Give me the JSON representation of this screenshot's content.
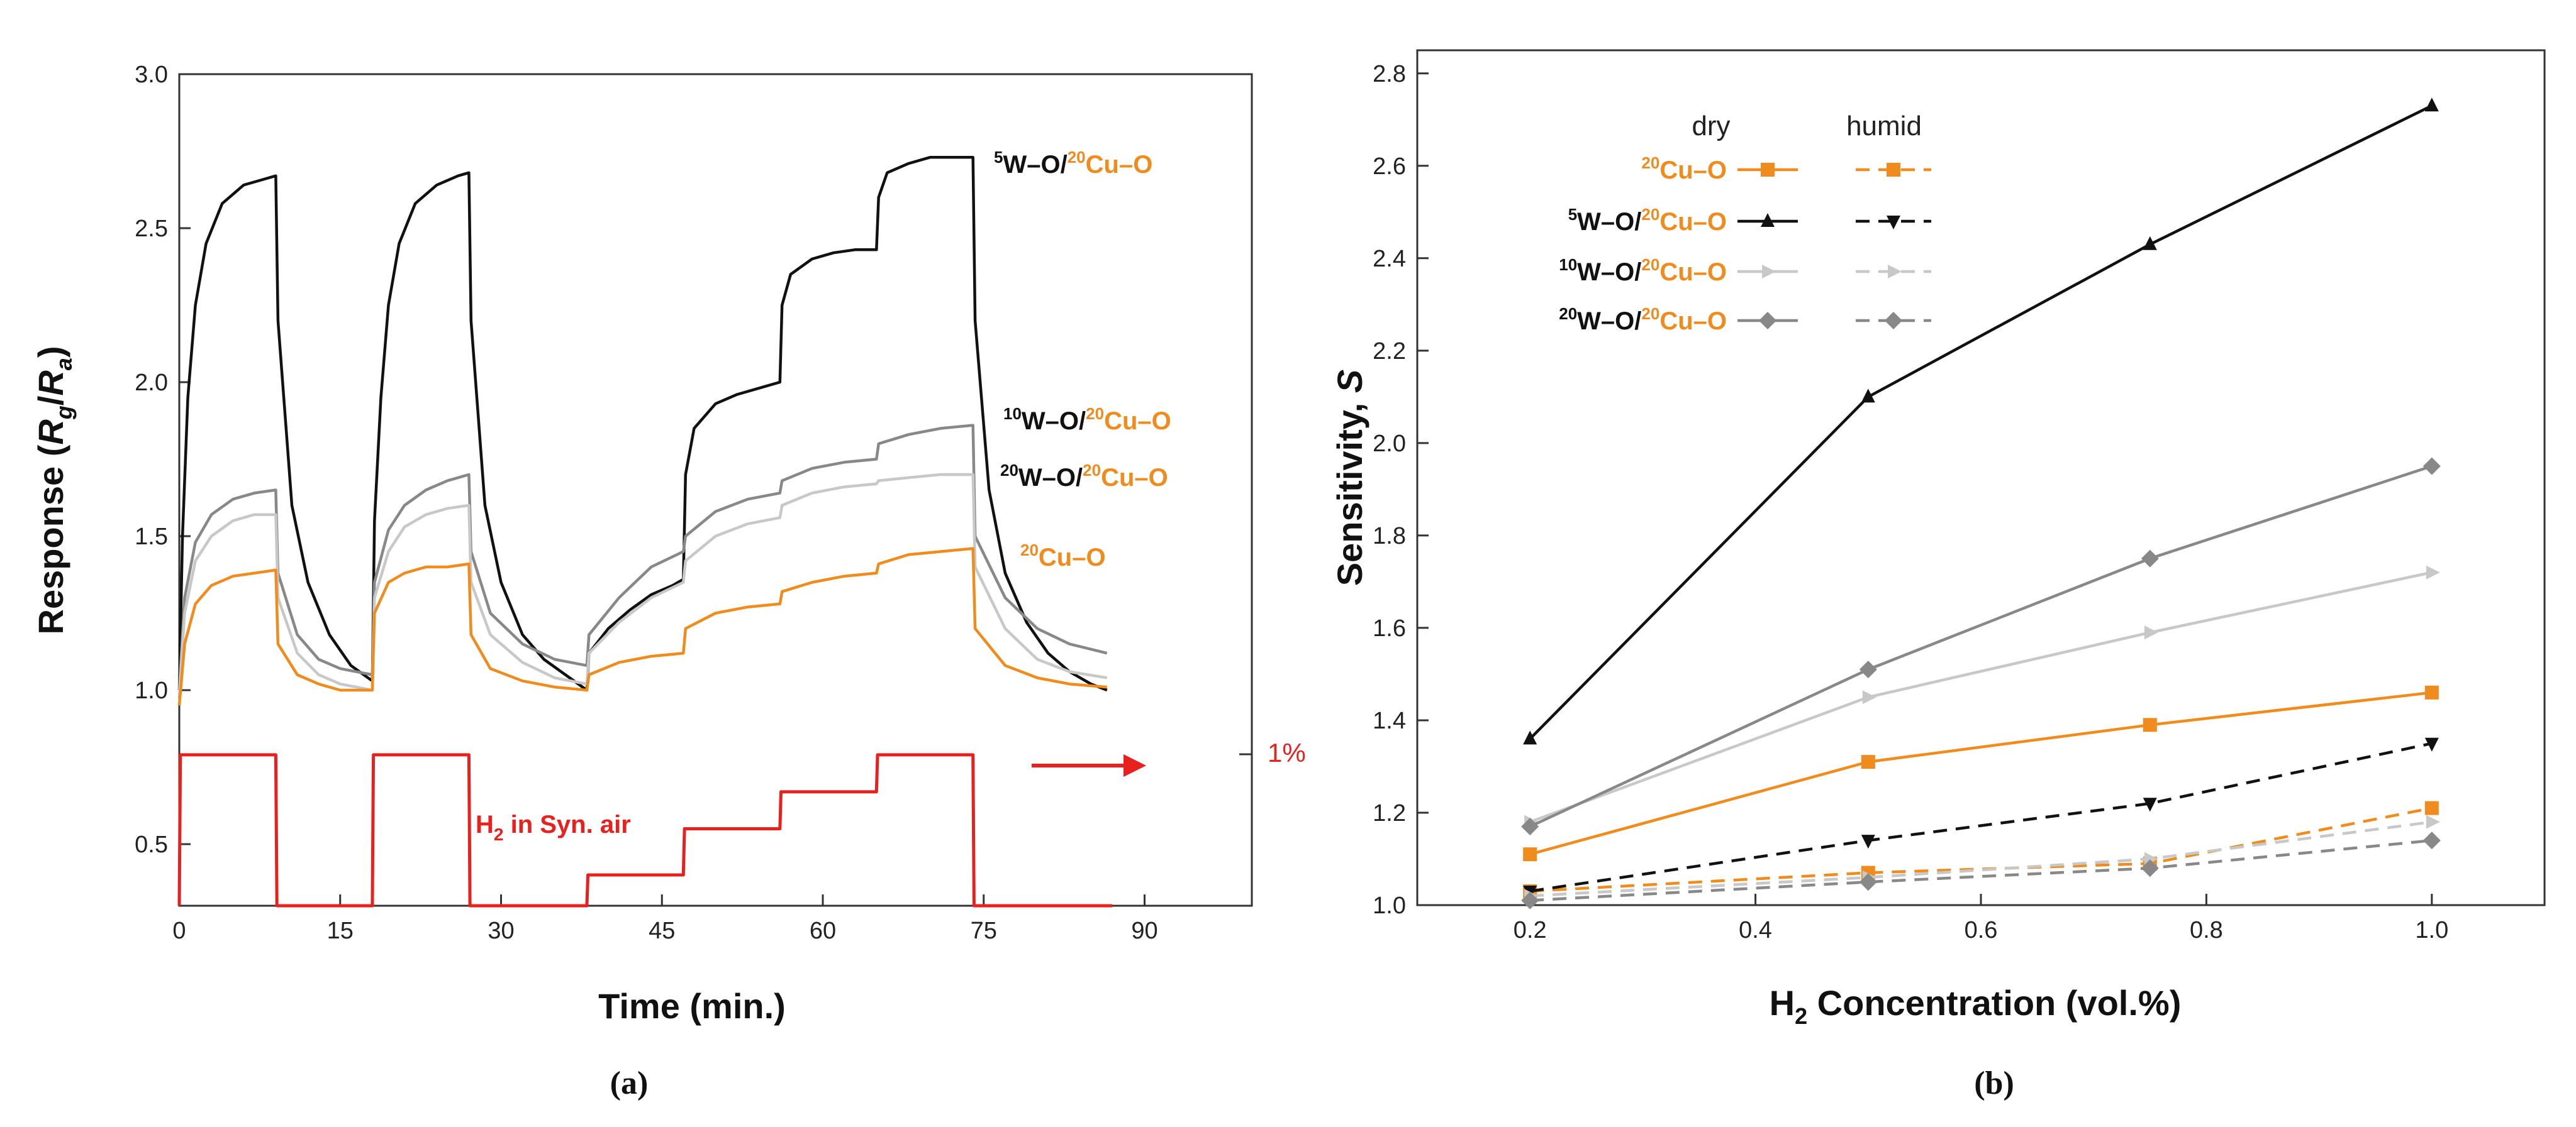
{
  "panel_a": {
    "label": "(a)",
    "chart_data": {
      "type": "line",
      "title": "",
      "xlabel": "Time (min.)",
      "ylabel": "Response (Rg/Ra)",
      "xlim": [
        0,
        100
      ],
      "ylim": [
        0.3,
        3.0
      ],
      "xticks": [
        "0",
        "15",
        "30",
        "45",
        "60",
        "75",
        "90"
      ],
      "yticks": [
        "0.5",
        "1.0",
        "1.5",
        "2.0",
        "2.5",
        "3.0"
      ],
      "series": [
        {
          "name": "5W-O/20Cu-O",
          "color": "#111111",
          "x": [
            0,
            0.3,
            0.8,
            1.5,
            2.5,
            4,
            6,
            8,
            9,
            9.2,
            10.5,
            12,
            14,
            16,
            18,
            18.2,
            18.8,
            19.5,
            20.5,
            22,
            24,
            26,
            27,
            27.2,
            28.5,
            30,
            32,
            34,
            36,
            38,
            38.2,
            40,
            42,
            44,
            46,
            47,
            47.2,
            48,
            50,
            52,
            54,
            56,
            56.2,
            57,
            59,
            61,
            63,
            65,
            65.2,
            66,
            68,
            70,
            72,
            74,
            74.2,
            75.5,
            77,
            79,
            81,
            83,
            85,
            86.5
          ],
          "y": [
            1.0,
            1.5,
            1.95,
            2.25,
            2.45,
            2.58,
            2.64,
            2.66,
            2.67,
            2.2,
            1.6,
            1.35,
            1.18,
            1.08,
            1.03,
            1.55,
            1.95,
            2.25,
            2.45,
            2.58,
            2.64,
            2.67,
            2.68,
            2.2,
            1.6,
            1.35,
            1.18,
            1.1,
            1.05,
            1.0,
            1.12,
            1.2,
            1.26,
            1.31,
            1.34,
            1.36,
            1.7,
            1.85,
            1.93,
            1.96,
            1.98,
            2.0,
            2.25,
            2.35,
            2.4,
            2.42,
            2.43,
            2.43,
            2.6,
            2.68,
            2.71,
            2.73,
            2.73,
            2.73,
            2.2,
            1.65,
            1.38,
            1.22,
            1.12,
            1.06,
            1.02,
            1.0
          ]
        },
        {
          "name": "10W-O/20Cu-O",
          "color": "#888888",
          "x": [
            0,
            0.5,
            1.5,
            3,
            5,
            7,
            9,
            9.2,
            11,
            13,
            15,
            18,
            18.2,
            19.5,
            21,
            23,
            25,
            27,
            27.2,
            29,
            32,
            35,
            38,
            38.2,
            41,
            44,
            47,
            47.2,
            50,
            53,
            56,
            56.2,
            59,
            62,
            65,
            65.2,
            68,
            71,
            74,
            74.2,
            77,
            80,
            83,
            86.5
          ],
          "y": [
            1.0,
            1.3,
            1.48,
            1.57,
            1.62,
            1.64,
            1.65,
            1.38,
            1.18,
            1.1,
            1.07,
            1.05,
            1.35,
            1.52,
            1.6,
            1.65,
            1.68,
            1.7,
            1.45,
            1.25,
            1.15,
            1.1,
            1.08,
            1.18,
            1.3,
            1.4,
            1.45,
            1.5,
            1.58,
            1.62,
            1.64,
            1.68,
            1.72,
            1.74,
            1.75,
            1.8,
            1.83,
            1.85,
            1.86,
            1.5,
            1.3,
            1.2,
            1.15,
            1.12
          ]
        },
        {
          "name": "20W-O/20Cu-O",
          "color": "#c8c8c8",
          "x": [
            0,
            0.5,
            1.5,
            3,
            5,
            7,
            9,
            9.2,
            11,
            13,
            15,
            18,
            18.2,
            19.5,
            21,
            23,
            25,
            27,
            27.2,
            29,
            32,
            35,
            38,
            38.2,
            41,
            44,
            47,
            47.2,
            50,
            53,
            56,
            56.2,
            59,
            62,
            65,
            65.2,
            68,
            71,
            74,
            74.2,
            77,
            80,
            83,
            86.5
          ],
          "y": [
            0.98,
            1.25,
            1.42,
            1.5,
            1.55,
            1.57,
            1.57,
            1.3,
            1.12,
            1.05,
            1.02,
            1.0,
            1.3,
            1.45,
            1.53,
            1.57,
            1.59,
            1.6,
            1.35,
            1.18,
            1.09,
            1.04,
            1.02,
            1.12,
            1.22,
            1.3,
            1.35,
            1.42,
            1.5,
            1.54,
            1.56,
            1.6,
            1.64,
            1.66,
            1.67,
            1.68,
            1.69,
            1.7,
            1.7,
            1.4,
            1.2,
            1.1,
            1.06,
            1.04
          ]
        },
        {
          "name": "20Cu-O",
          "color": "#f08c1e",
          "x": [
            0,
            0.5,
            1.5,
            3,
            5,
            7,
            9,
            9.2,
            11,
            13,
            15,
            18,
            18.2,
            19.5,
            21,
            23,
            25,
            27,
            27.2,
            29,
            32,
            35,
            38,
            38.2,
            41,
            44,
            47,
            47.2,
            50,
            53,
            56,
            56.2,
            59,
            62,
            65,
            65.2,
            68,
            71,
            74,
            74.2,
            77,
            80,
            83,
            86.5
          ],
          "y": [
            0.95,
            1.15,
            1.28,
            1.34,
            1.37,
            1.38,
            1.39,
            1.15,
            1.05,
            1.02,
            1.0,
            1.0,
            1.25,
            1.35,
            1.38,
            1.4,
            1.4,
            1.41,
            1.18,
            1.07,
            1.03,
            1.01,
            1.0,
            1.05,
            1.09,
            1.11,
            1.12,
            1.2,
            1.25,
            1.27,
            1.28,
            1.32,
            1.35,
            1.37,
            1.38,
            1.41,
            1.44,
            1.45,
            1.46,
            1.2,
            1.08,
            1.04,
            1.02,
            1.01
          ]
        },
        {
          "name": "H2 pulse",
          "color": "#e8201e",
          "x": [
            0,
            0.1,
            9,
            9.1,
            18,
            18.1,
            27,
            27.1,
            38,
            38.1,
            47,
            47.1,
            56,
            56.1,
            65,
            65.1,
            74,
            74.1,
            87
          ],
          "y": [
            0.3,
            0.79,
            0.79,
            0.3,
            0.3,
            0.79,
            0.79,
            0.3,
            0.3,
            0.4,
            0.4,
            0.55,
            0.55,
            0.67,
            0.67,
            0.79,
            0.79,
            0.3,
            0.3
          ]
        }
      ],
      "annotations": {
        "lbl_5w": {
          "pre": "5",
          "mid": "W–O/",
          "pre2": "20",
          "tail": "Cu–O"
        },
        "lbl_10w": {
          "pre": "10",
          "mid": "W–O/",
          "pre2": "20",
          "tail": "Cu–O"
        },
        "lbl_20w": {
          "pre": "20",
          "mid": "W–O/",
          "pre2": "20",
          "tail": "Cu–O"
        },
        "lbl_cu": {
          "pre": "20",
          "tail": "Cu–O"
        },
        "h2_text": {
          "main": "H",
          "sub": "2",
          "rest": " in Syn. air"
        },
        "pct": "1%"
      },
      "ylabel_parts": {
        "a": "Response (",
        "r1": "R",
        "s1": "g",
        "slash": "/",
        "r2": "R",
        "s2": "a",
        "end": ")"
      }
    }
  },
  "panel_b": {
    "label": "(b)",
    "chart_data": {
      "type": "line",
      "title": "",
      "xlabel": "H2 Concentration (vol.%)",
      "xlabel_parts": {
        "main": "H",
        "sub": "2",
        "rest": " Concentration (vol.%)"
      },
      "ylabel": "Sensitivity, S",
      "ylabel_parts": {
        "main": "Sensitivity, ",
        "ital": "S"
      },
      "xlim": [
        0.1,
        1.1
      ],
      "ylim": [
        1.0,
        2.85
      ],
      "xticks": [
        "0.2",
        "0.4",
        "0.6",
        "0.8",
        "1.0"
      ],
      "yticks": [
        "1.0",
        "1.2",
        "1.4",
        "1.6",
        "1.8",
        "2.0",
        "2.2",
        "2.4",
        "2.6",
        "2.8"
      ],
      "x": [
        0.2,
        0.5,
        0.75,
        1.0
      ],
      "legend_headers": {
        "dry": "dry",
        "humid": "humid"
      },
      "series": [
        {
          "name": "20Cu-O",
          "pre": "20",
          "tail": "Cu–O",
          "color": "#f08c1e",
          "marker": "square",
          "dry": [
            1.11,
            1.31,
            1.39,
            1.46
          ],
          "humid": [
            1.03,
            1.07,
            1.09,
            1.21
          ]
        },
        {
          "name": "5W-O/20Cu-O",
          "pre": "5",
          "mid": "W–O/",
          "pre2": "20",
          "tail": "Cu–O",
          "color": "#111111",
          "marker": "triangle",
          "dry": [
            1.36,
            2.1,
            2.43,
            2.73
          ],
          "humid": [
            1.03,
            1.14,
            1.22,
            1.35
          ]
        },
        {
          "name": "10W-O/20Cu-O",
          "pre": "10",
          "mid": "W–O/",
          "pre2": "20",
          "tail": "Cu–O",
          "color": "#c8c8c8",
          "marker": "right-triangle",
          "dry": [
            1.18,
            1.45,
            1.59,
            1.72
          ],
          "humid": [
            1.02,
            1.06,
            1.1,
            1.18
          ]
        },
        {
          "name": "20W-O/20Cu-O",
          "pre": "20",
          "mid": "W–O/",
          "pre2": "20",
          "tail": "Cu–O",
          "color": "#888888",
          "marker": "diamond",
          "dry": [
            1.17,
            1.51,
            1.75,
            1.95
          ],
          "humid": [
            1.01,
            1.05,
            1.08,
            1.14
          ]
        }
      ]
    }
  }
}
